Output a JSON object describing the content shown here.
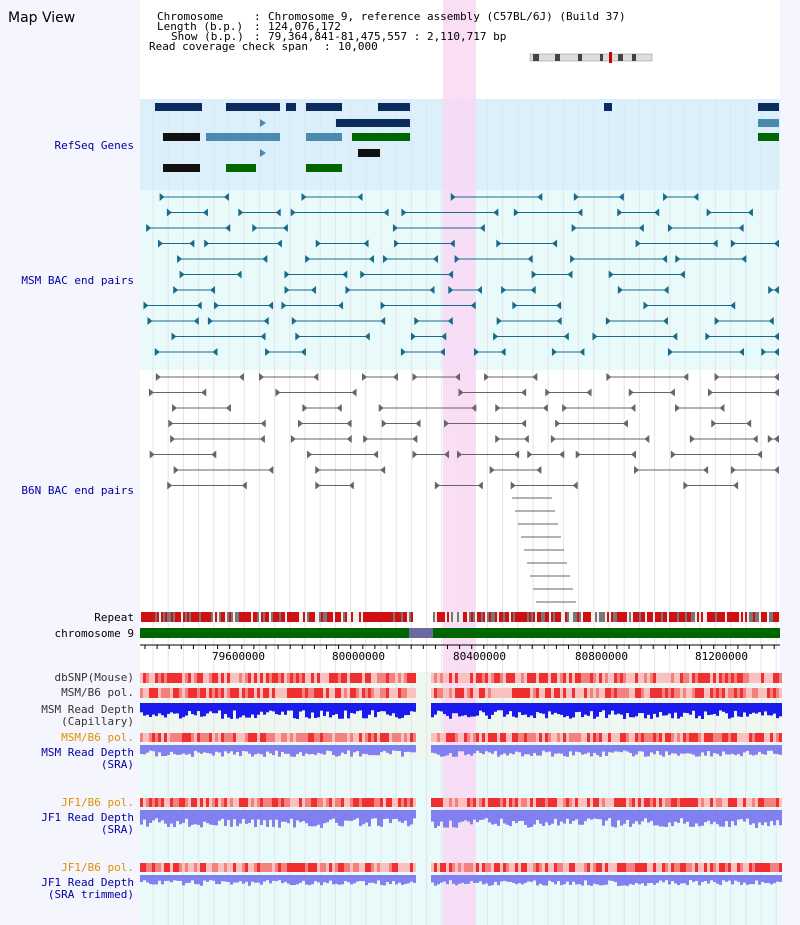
{
  "title": "Map View",
  "info": {
    "chromosome_key": "Chromosome",
    "chromosome_val": "Chromosome 9, reference assembly (C57BL/6J) (Build 37)",
    "length_key": "Length (b.p.)",
    "length_val": "124,076,172",
    "show_key": "Show (b.p.)",
    "show_val": "79,364,841-81,475,557 : 2,110,717 bp",
    "span_key": "Read coverage check span",
    "span_val": "10,000"
  },
  "tracks": {
    "refseq": "RefSeq Genes",
    "msm_bac": "MSM BAC end pairs",
    "b6n_bac": "B6N BAC end pairs",
    "repeat": "Repeat",
    "chromosome": "chromosome 9",
    "dbsnp": "dbSNP(Mouse)",
    "msm_b6_pol_1": "MSM/B6 pol.",
    "msm_depth_cap_1": "MSM Read Depth",
    "msm_depth_cap_2": "(Capillary)",
    "msm_b6_pol_2": "MSM/B6 pol.",
    "msm_depth_sra_1": "MSM Read Depth",
    "msm_depth_sra_2": "(SRA)",
    "jf1_b6_pol_1": "JF1/B6 pol.",
    "jf1_depth_sra_1": "JF1 Read Depth",
    "jf1_depth_sra_2": "(SRA)",
    "jf1_b6_pol_2": "JF1/B6 pol.",
    "jf1_depth_trim_1": "JF1 Read Depth",
    "jf1_depth_trim_2": "(SRA trimmed)"
  },
  "ruler": {
    "ticks": [
      "79600000",
      "80000000",
      "80400000",
      "80800000",
      "81200000"
    ]
  },
  "colors": {
    "refseq_bg": "#dbf0fa",
    "bac_bg": "#e8fafa",
    "highlight": "#f8d8f4",
    "chromosome": "#006600",
    "gene_navy": "#0b2a5e",
    "gene_teal": "#4a8ab0",
    "gene_green": "#006600",
    "msm_pair": "#1a6a8a",
    "b6n_pair": "#666666",
    "depth_blue": "#1a1aee",
    "depth_sra": "#8080f0"
  }
}
